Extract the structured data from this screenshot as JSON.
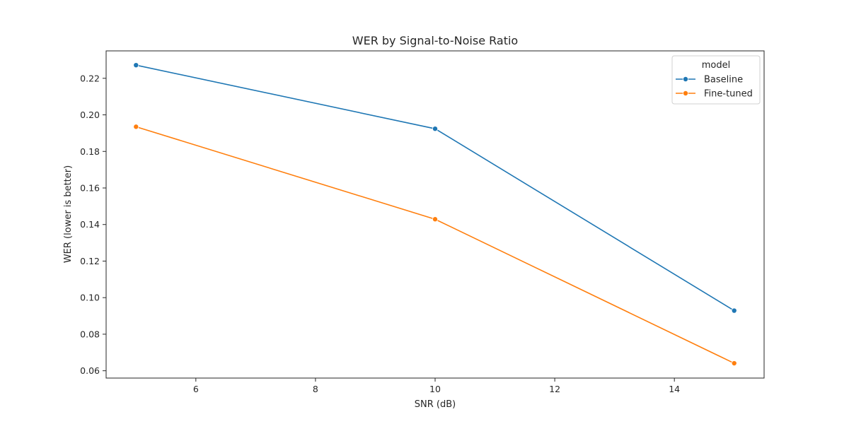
{
  "chart_data": {
    "type": "line",
    "title": "WER by Signal-to-Noise Ratio",
    "xlabel": "SNR (dB)",
    "ylabel": "WER (lower is better)",
    "x": [
      5,
      10,
      15
    ],
    "xlim": [
      4.5,
      15.5
    ],
    "ylim": [
      0.056,
      0.235
    ],
    "xticks": [
      "6",
      "8",
      "10",
      "12",
      "14"
    ],
    "yticks": [
      "0.06",
      "0.08",
      "0.10",
      "0.12",
      "0.14",
      "0.16",
      "0.18",
      "0.20",
      "0.22"
    ],
    "grid": false,
    "legend": {
      "title": "model",
      "placement": "top-right"
    },
    "series": [
      {
        "name": "Baseline",
        "color": "#1f77b4",
        "values": [
          0.2272,
          0.1924,
          0.0929
        ]
      },
      {
        "name": "Fine-tuned",
        "color": "#ff7f0e",
        "values": [
          0.1935,
          0.1429,
          0.0641
        ]
      }
    ]
  }
}
